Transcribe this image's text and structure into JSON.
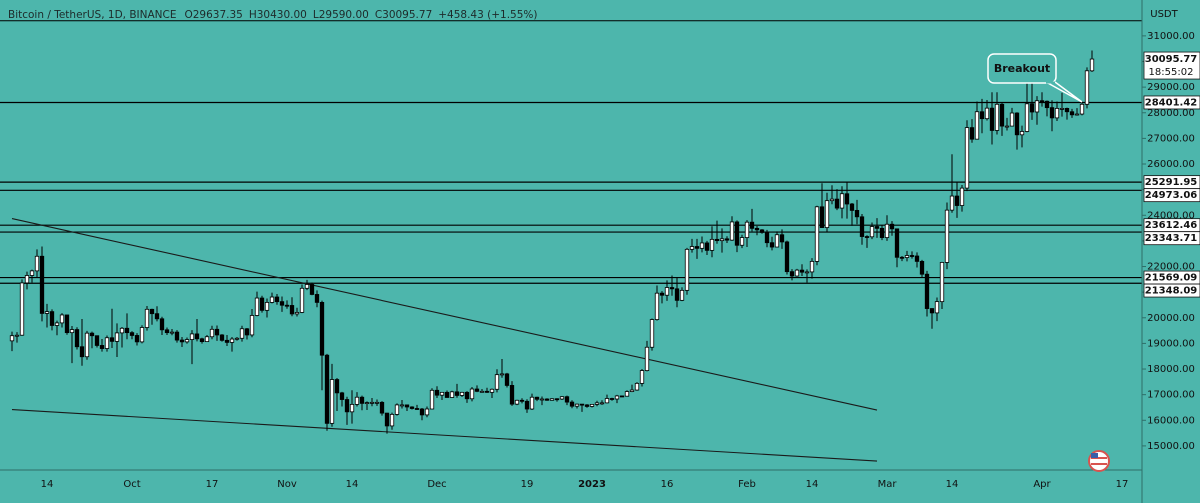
{
  "chart_data": {
    "type": "candlestick",
    "title": "Bitcoin / TetherUS, 1D, BINANCE",
    "ohlc_legend": [
      "O29637.35",
      "H30430.00",
      "L29590.00",
      "C30095.77",
      "+458.43 (+1.55%)"
    ],
    "currency": "USDT",
    "background": "#4db6ac",
    "up_color": "#ffffff",
    "down_color": "#000000",
    "categories": [
      null,
      null,
      null,
      null,
      null,
      null,
      null,
      "14",
      null,
      null,
      null,
      null,
      null,
      null,
      null,
      null,
      null,
      null,
      null,
      null,
      null,
      null,
      null,
      null,
      "Oct",
      null,
      null,
      null,
      null,
      null,
      null,
      null,
      null,
      null,
      null,
      null,
      null,
      null,
      null,
      null,
      "17",
      null,
      null,
      null,
      null,
      null,
      null,
      null,
      null,
      null,
      null,
      null,
      null,
      null,
      null,
      "Nov",
      null,
      null,
      null,
      null,
      null,
      null,
      null,
      null,
      null,
      null,
      null,
      null,
      "14",
      null,
      null,
      null,
      null,
      null,
      null,
      null,
      null,
      null,
      null,
      null,
      null,
      null,
      null,
      null,
      null,
      "Dec",
      null,
      null,
      null,
      null,
      null,
      null,
      null,
      null,
      null,
      null,
      null,
      null,
      null,
      null,
      null,
      null,
      null,
      "19",
      null,
      null,
      null,
      null,
      null,
      null,
      null,
      null,
      null,
      null,
      null,
      null,
      "2023",
      null,
      null,
      null,
      null,
      null,
      null,
      null,
      null,
      null,
      null,
      null,
      null,
      null,
      null,
      "16",
      null,
      null,
      null,
      null,
      null,
      null,
      null,
      null,
      null,
      null,
      null,
      null,
      null,
      null,
      null,
      "Feb",
      null,
      null,
      null,
      null,
      null,
      null,
      null,
      null,
      null,
      null,
      null,
      null,
      "14",
      null,
      null,
      null,
      null,
      null,
      null,
      null,
      null,
      null,
      null,
      null,
      null,
      null,
      null,
      "Mar",
      null,
      null,
      null,
      null,
      null,
      null,
      null,
      null,
      null,
      null,
      null,
      null,
      "14",
      null,
      null,
      null,
      null,
      null,
      null,
      null,
      null,
      null,
      null,
      null,
      null,
      null,
      null,
      null,
      null,
      null,
      "Apr",
      null,
      null,
      null,
      null,
      null,
      null,
      null,
      null,
      null,
      null,
      null,
      null,
      null,
      null,
      null,
      "17"
    ],
    "open": [
      19100,
      19300,
      19320,
      21360,
      21650,
      21830,
      22400,
      20170,
      20240,
      19700,
      19800,
      20110,
      19420,
      19540,
      18870,
      18480,
      19400,
      19300,
      18920,
      18800,
      19220,
      19080,
      19410,
      19590,
      19420,
      19310,
      19060,
      19620,
      20330,
      20160,
      19960,
      19530,
      19420,
      19440,
      19130,
      19060,
      19150,
      19370,
      19180,
      19070,
      19260,
      19550,
      19330,
      19120,
      19040,
      19170,
      19200,
      19570,
      19330,
      20090,
      20770,
      20290,
      20600,
      20810,
      20630,
      20490,
      20480,
      20150,
      20210,
      21150,
      21300,
      20910,
      20600,
      18540,
      15880,
      17590,
      17070,
      16810,
      16330,
      16620,
      16900,
      16660,
      16690,
      16700,
      16700,
      16280,
      15780,
      16230,
      16600,
      16600,
      16520,
      16460,
      16440,
      16210,
      16440,
      17170,
      16980,
      17090,
      16890,
      17110,
      16970,
      17090,
      16840,
      17220,
      17130,
      17130,
      17090,
      17210,
      17780,
      17810,
      17360,
      16630,
      16780,
      16740,
      16440,
      16900,
      16820,
      16830,
      16780,
      16840,
      16830,
      16920,
      16710,
      16550,
      16630,
      16600,
      16540,
      16620,
      16680,
      16680,
      16850,
      16830,
      16950,
      16940,
      17120,
      17180,
      17440,
      17940,
      18850,
      19930,
      20960,
      20880,
      21180,
      21130,
      20680,
      21070,
      22670,
      22780,
      22710,
      22920,
      22630,
      23060,
      23010,
      23080,
      23030,
      23740,
      22830,
      23130,
      23730,
      23490,
      23430,
      23330,
      22930,
      22760,
      23240,
      22960,
      21800,
      21630,
      21860,
      21780,
      21790,
      22200,
      24330,
      23520,
      24570,
      24630,
      24280,
      24840,
      24440,
      24190,
      23940,
      23170,
      23160,
      23560,
      23490,
      23130,
      23650,
      23470,
      22360,
      22350,
      22430,
      22410,
      22200,
      21700,
      20360,
      20190,
      20630,
      22160,
      24200,
      24750,
      24380,
      25060,
      27420,
      26970,
      28040,
      27770,
      28180,
      27310,
      28330,
      27480,
      27480,
      27990,
      27140,
      27270,
      28350,
      28030,
      28470,
      28450,
      28200,
      27800,
      28170,
      28170,
      28040,
      27920,
      27950,
      28330,
      29637.35,
      null,
      null,
      null,
      null,
      null,
      null
    ],
    "high": [
      19460,
      19440,
      21500,
      21800,
      21880,
      22670,
      22780,
      20540,
      20330,
      19890,
      20180,
      20110,
      19680,
      19630,
      19950,
      19490,
      19460,
      19310,
      19170,
      19310,
      20350,
      19780,
      19640,
      20170,
      19480,
      19400,
      19710,
      20460,
      20350,
      20450,
      20040,
      19620,
      19560,
      19520,
      19250,
      19230,
      19520,
      19950,
      19220,
      19330,
      19690,
      19700,
      19360,
      19330,
      19250,
      19250,
      19690,
      19600,
      20340,
      21020,
      20860,
      20750,
      20980,
      20930,
      20830,
      20680,
      20800,
      20390,
      21300,
      21480,
      21370,
      21070,
      20670,
      18590,
      18200,
      17650,
      17110,
      16920,
      17170,
      17100,
      16960,
      16740,
      16870,
      16810,
      16750,
      16290,
      16300,
      16660,
      16790,
      16610,
      16550,
      16600,
      16480,
      16540,
      17250,
      17330,
      17100,
      17160,
      17150,
      17420,
      17110,
      17140,
      17300,
      17360,
      17220,
      17270,
      17240,
      17990,
      18390,
      17850,
      17530,
      16800,
      16860,
      16820,
      17040,
      16920,
      16930,
      16860,
      16860,
      16860,
      16940,
      16960,
      16780,
      16650,
      16630,
      16630,
      16630,
      16760,
      16780,
      17000,
      16880,
      16990,
      16960,
      17170,
      17390,
      17490,
      18000,
      19100,
      19970,
      21260,
      21040,
      21460,
      21650,
      21590,
      21190,
      22730,
      23080,
      23080,
      23170,
      23000,
      23570,
      23790,
      23490,
      23180,
      23960,
      23800,
      23240,
      23810,
      24250,
      23580,
      23460,
      23430,
      23160,
      23370,
      23450,
      23010,
      21900,
      21910,
      22090,
      21890,
      22330,
      24370,
      25250,
      24880,
      25170,
      25020,
      25130,
      25280,
      24480,
      24600,
      24050,
      23220,
      23720,
      23890,
      23620,
      24000,
      23770,
      23480,
      22410,
      22610,
      22590,
      22550,
      22260,
      21830,
      20370,
      20790,
      22180,
      24500,
      26380,
      25300,
      25180,
      27710,
      27750,
      28440,
      28540,
      28500,
      28800,
      28800,
      28380,
      27800,
      28190,
      28020,
      27500,
      29180,
      29190,
      28650,
      28800,
      28480,
      28490,
      28440,
      28780,
      28200,
      28150,
      28180,
      28460,
      29770,
      30430,
      null,
      null,
      null,
      null,
      null,
      null
    ],
    "low": [
      18700,
      19030,
      19300,
      21110,
      21370,
      21560,
      19860,
      19620,
      19510,
      19320,
      19620,
      19340,
      18230,
      18760,
      18130,
      18360,
      18810,
      18840,
      18680,
      18680,
      18820,
      18470,
      18840,
      19160,
      19160,
      18920,
      19000,
      19500,
      19730,
      19860,
      19330,
      19330,
      19320,
      19030,
      18860,
      18990,
      18190,
      19080,
      18990,
      19060,
      19160,
      19100,
      19070,
      18900,
      18680,
      19110,
      19070,
      19150,
      19240,
      20060,
      20200,
      20010,
      20560,
      20510,
      20230,
      20350,
      20060,
      20050,
      20180,
      21080,
      20880,
      20410,
      17170,
      15590,
      15750,
      16360,
      16540,
      15820,
      15870,
      16540,
      16390,
      16400,
      16550,
      16560,
      16180,
      15480,
      15630,
      16180,
      16460,
      16360,
      16420,
      16400,
      16000,
      16120,
      16430,
      16870,
      16790,
      16880,
      16880,
      16880,
      16910,
      16680,
      16740,
      17100,
      17090,
      17070,
      16870,
      17090,
      17660,
      17280,
      16560,
      16590,
      16660,
      16290,
      16400,
      16750,
      16590,
      16760,
      16790,
      16730,
      16790,
      16590,
      16470,
      16460,
      16330,
      16490,
      16500,
      16550,
      16600,
      16660,
      16760,
      16670,
      16910,
      16930,
      17100,
      17150,
      17320,
      17910,
      18720,
      19890,
      20560,
      20660,
      20860,
      20410,
      20650,
      20900,
      22540,
      22300,
      22550,
      22450,
      22360,
      22890,
      22540,
      22920,
      23000,
      22560,
      22720,
      22760,
      23370,
      23220,
      23280,
      22750,
      22630,
      22750,
      22690,
      21690,
      21460,
      21600,
      21630,
      21370,
      21530,
      22050,
      23510,
      23350,
      24430,
      24200,
      23880,
      23870,
      23590,
      23650,
      22850,
      22730,
      23070,
      23120,
      23030,
      23000,
      23200,
      21970,
      22210,
      22200,
      22310,
      21960,
      21580,
      20050,
      19570,
      19870,
      20340,
      21900,
      24100,
      23900,
      24140,
      24940,
      26830,
      26960,
      27200,
      27700,
      26760,
      27150,
      27100,
      27310,
      27480,
      26560,
      26650,
      27240,
      27720,
      27530,
      28240,
      27860,
      27280,
      27680,
      27850,
      27730,
      27800,
      27890,
      27900,
      28170,
      29590,
      null,
      null,
      null,
      null,
      null,
      null
    ],
    "close": [
      19300,
      19320,
      21360,
      21650,
      21830,
      22400,
      20170,
      20240,
      19700,
      19800,
      20110,
      19420,
      19540,
      18870,
      18480,
      19400,
      19300,
      18920,
      18800,
      19220,
      19080,
      19410,
      19590,
      19420,
      19310,
      19060,
      19620,
      20330,
      20160,
      19960,
      19530,
      19420,
      19440,
      19130,
      19060,
      19150,
      19370,
      19180,
      19070,
      19260,
      19550,
      19330,
      19120,
      19040,
      19170,
      19200,
      19570,
      19330,
      20090,
      20770,
      20290,
      20600,
      20810,
      20630,
      20490,
      20480,
      20150,
      20210,
      21150,
      21300,
      20910,
      20600,
      18540,
      15880,
      17590,
      17070,
      16810,
      16330,
      16620,
      16900,
      16660,
      16690,
      16700,
      16700,
      16280,
      15780,
      16230,
      16600,
      16600,
      16520,
      16460,
      16440,
      16210,
      16440,
      17170,
      16980,
      17090,
      16890,
      17110,
      16970,
      17090,
      16840,
      17220,
      17130,
      17130,
      17090,
      17210,
      17780,
      17810,
      17360,
      16630,
      16780,
      16740,
      16440,
      16900,
      16820,
      16830,
      16780,
      16840,
      16830,
      16920,
      16710,
      16550,
      16630,
      16600,
      16540,
      16620,
      16680,
      16680,
      16850,
      16830,
      16950,
      16940,
      17120,
      17180,
      17440,
      17940,
      18850,
      19930,
      20960,
      20880,
      21180,
      21130,
      20680,
      21070,
      22670,
      22780,
      22710,
      22920,
      22630,
      23060,
      23010,
      23080,
      23030,
      23740,
      22830,
      23130,
      23730,
      23490,
      23430,
      23330,
      22930,
      22760,
      23240,
      22960,
      21800,
      21630,
      21860,
      21780,
      21790,
      22200,
      24330,
      23520,
      24570,
      24630,
      24280,
      24840,
      24440,
      24190,
      23940,
      23170,
      23160,
      23560,
      23490,
      23130,
      23650,
      23470,
      22360,
      22350,
      22430,
      22410,
      22200,
      21700,
      20360,
      20190,
      20630,
      22160,
      24200,
      24750,
      24380,
      25060,
      27420,
      26970,
      28040,
      27770,
      28180,
      27310,
      28330,
      27480,
      27480,
      27990,
      27140,
      27270,
      28350,
      28030,
      28470,
      28450,
      28200,
      27800,
      28170,
      28170,
      28040,
      27920,
      27950,
      28330,
      29637.35,
      30095.77,
      null,
      null,
      null,
      null,
      null,
      null
    ],
    "ylim": [
      14060,
      32400
    ],
    "yticks": [
      {
        "value": 15000,
        "label": "15000.00"
      },
      {
        "value": 16000,
        "label": "16000.00"
      },
      {
        "value": 17000,
        "label": "17000.00"
      },
      {
        "value": 18000,
        "label": "18000.00"
      },
      {
        "value": 19000,
        "label": "19000.00"
      },
      {
        "value": 20000,
        "label": "20000.00"
      },
      {
        "value": 21000,
        "label": "21000.00"
      },
      {
        "value": 22000,
        "label": "22000.00"
      },
      {
        "value": 23000,
        "label": "23000.00"
      },
      {
        "value": 24000,
        "label": "24000.00"
      },
      {
        "value": 25000,
        "label": "25000.00"
      },
      {
        "value": 26000,
        "label": "26000.00"
      },
      {
        "value": 27000,
        "label": "27000.00"
      },
      {
        "value": 28000,
        "label": "28000.00"
      },
      {
        "value": 29000,
        "label": "29000.00"
      },
      {
        "value": 30000,
        "label": "30000.00"
      },
      {
        "value": 31000,
        "label": "31000.00"
      }
    ],
    "levels": [
      28401.42,
      25291.95,
      24973.06,
      23612.46,
      23343.71,
      21569.09,
      21348.09
    ],
    "unlabeled_levels": [
      31590
    ],
    "current_price": 30095.77,
    "countdown": "18:55:02",
    "trendlines": [
      {
        "x": [
          0,
          173
        ],
        "y": [
          23870,
          16400
        ]
      },
      {
        "x": [
          0,
          173
        ],
        "y": [
          16420,
          14410
        ]
      }
    ],
    "annotation": "Breakout"
  }
}
